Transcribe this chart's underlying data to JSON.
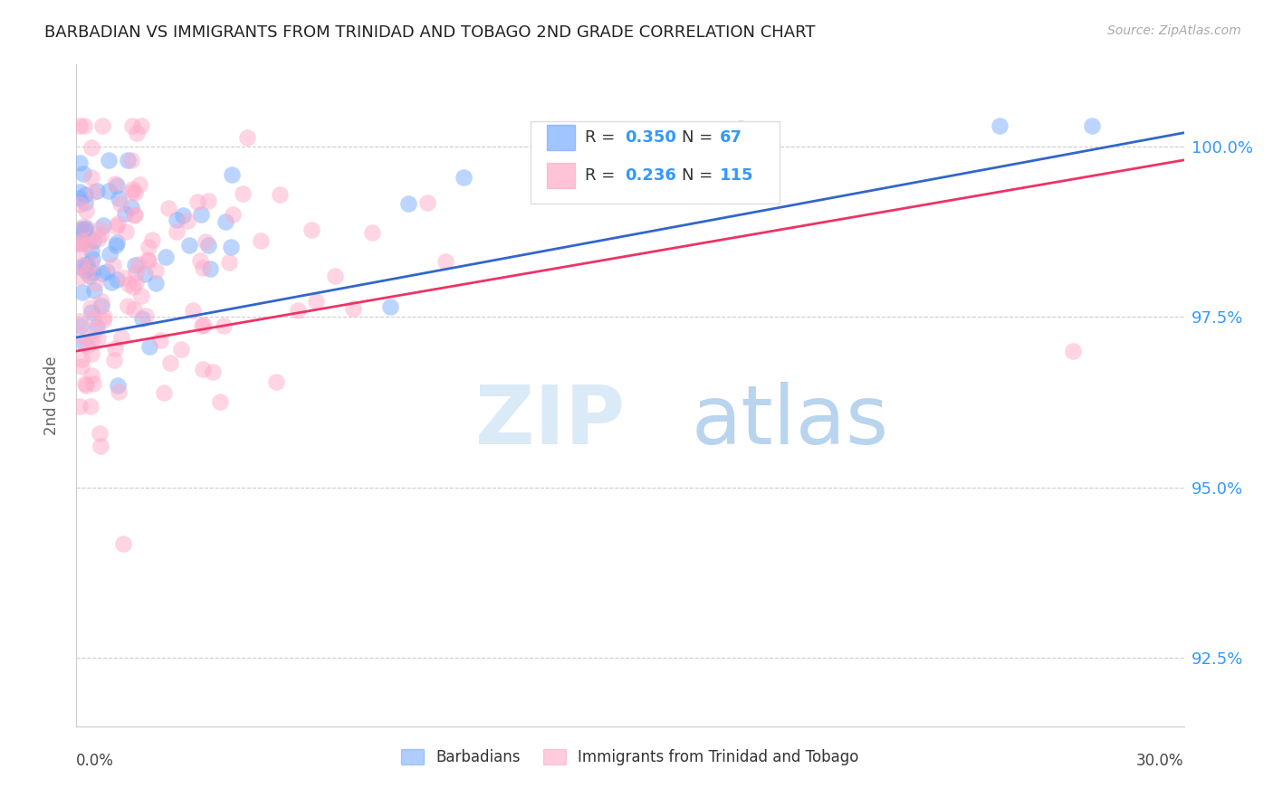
{
  "title": "BARBADIAN VS IMMIGRANTS FROM TRINIDAD AND TOBAGO 2ND GRADE CORRELATION CHART",
  "source": "Source: ZipAtlas.com",
  "ylabel": "2nd Grade",
  "xmin": 0.0,
  "xmax": 30.0,
  "ymin": 91.5,
  "ymax": 101.2,
  "yticks": [
    92.5,
    95.0,
    97.5,
    100.0
  ],
  "ytick_labels": [
    "92.5%",
    "95.0%",
    "97.5%",
    "100.0%"
  ],
  "blue_R": 0.35,
  "blue_N": 67,
  "pink_R": 0.236,
  "pink_N": 115,
  "blue_scatter_color": "#7aadff",
  "pink_scatter_color": "#ffaac8",
  "blue_line_color": "#3366cc",
  "pink_line_color": "#ee3366",
  "right_axis_color": "#3399ff",
  "title_color": "#222222",
  "axis_label_color": "#666666",
  "watermark_color": "#daeaf7",
  "watermark_atlas_color": "#b8d4ee",
  "legend_label_blue": "Barbadians",
  "legend_label_pink": "Immigrants from Trinidad and Tobago"
}
